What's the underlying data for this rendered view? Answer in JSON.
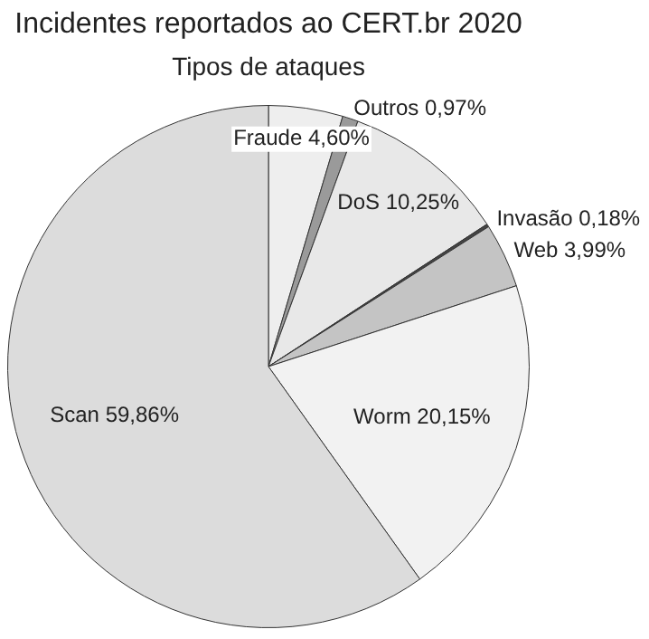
{
  "chart_data": {
    "type": "pie",
    "title": "Incidentes reportados ao CERT.br 2020",
    "subtitle": "Tipos de ataques",
    "categories": [
      "Fraude",
      "Outros",
      "DoS",
      "Invasão",
      "Web",
      "Worm",
      "Scan"
    ],
    "values": [
      4.6,
      0.97,
      10.25,
      0.18,
      3.99,
      20.15,
      59.86
    ],
    "value_labels": [
      "4,60%",
      "0,97%",
      "10,25%",
      "0,18%",
      "3,99%",
      "20,15%",
      "59,86%"
    ],
    "colors": [
      "#eeeeee",
      "#9a9a9a",
      "#e8e8e8",
      "#444444",
      "#c4c4c4",
      "#f2f2f2",
      "#dcdcdc"
    ],
    "legend": false
  }
}
